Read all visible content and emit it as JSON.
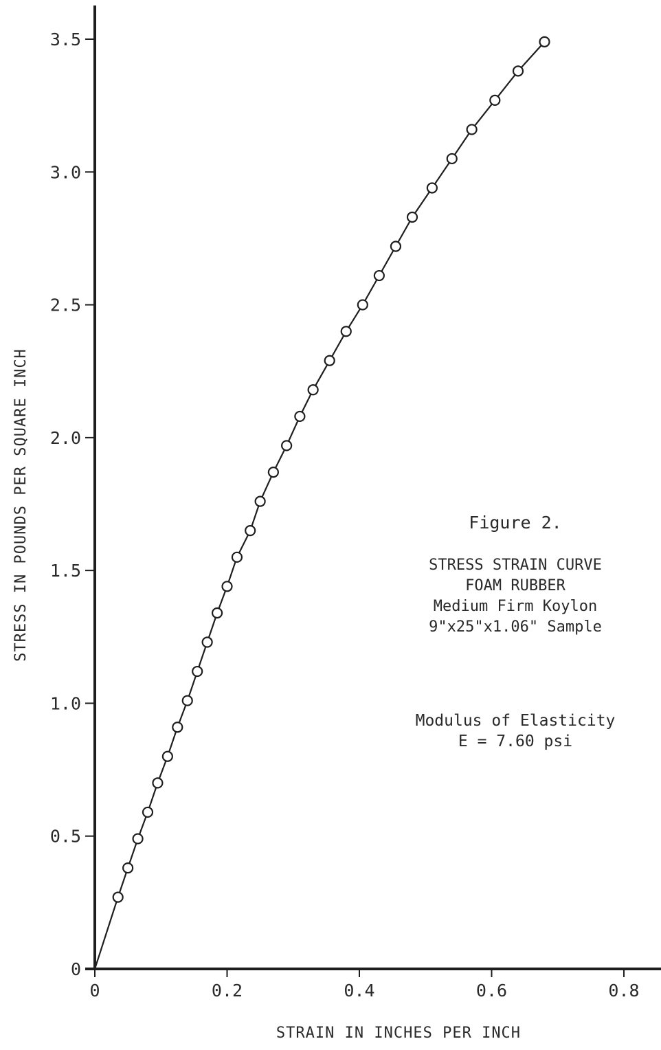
{
  "chart_data": {
    "type": "line",
    "title": "",
    "xlabel": "STRAIN IN INCHES PER INCH",
    "ylabel": "STRESS IN POUNDS PER SQUARE INCH",
    "xlim": [
      0,
      0.8
    ],
    "ylim": [
      0,
      3.5
    ],
    "x_ticks": [
      0,
      0.2,
      0.4,
      0.6,
      0.8
    ],
    "x_tick_labels": [
      "0",
      "0.2",
      "0.4",
      "0.6",
      "0.8"
    ],
    "y_ticks": [
      0,
      0.5,
      1.0,
      1.5,
      2.0,
      2.5,
      3.0,
      3.5
    ],
    "y_tick_labels": [
      "0",
      "0.5",
      "1.0",
      "1.5",
      "2.0",
      "2.5",
      "3.0",
      "3.5"
    ],
    "grid": false,
    "series": [
      {
        "marker": "open-circle",
        "line": "solid",
        "color": "#1e1e1e",
        "points": [
          [
            0.035,
            0.27
          ],
          [
            0.05,
            0.38
          ],
          [
            0.065,
            0.49
          ],
          [
            0.08,
            0.59
          ],
          [
            0.095,
            0.7
          ],
          [
            0.11,
            0.8
          ],
          [
            0.125,
            0.91
          ],
          [
            0.14,
            1.01
          ],
          [
            0.155,
            1.12
          ],
          [
            0.17,
            1.23
          ],
          [
            0.185,
            1.34
          ],
          [
            0.2,
            1.44
          ],
          [
            0.215,
            1.55
          ],
          [
            0.235,
            1.65
          ],
          [
            0.25,
            1.76
          ],
          [
            0.27,
            1.87
          ],
          [
            0.29,
            1.97
          ],
          [
            0.31,
            2.08
          ],
          [
            0.33,
            2.18
          ],
          [
            0.355,
            2.29
          ],
          [
            0.38,
            2.4
          ],
          [
            0.405,
            2.5
          ],
          [
            0.43,
            2.61
          ],
          [
            0.455,
            2.72
          ],
          [
            0.48,
            2.83
          ],
          [
            0.51,
            2.94
          ],
          [
            0.54,
            3.05
          ],
          [
            0.57,
            3.16
          ],
          [
            0.605,
            3.27
          ],
          [
            0.64,
            3.38
          ],
          [
            0.68,
            3.49
          ]
        ]
      }
    ]
  },
  "caption": {
    "figure": "Figure 2.",
    "lines": [
      "STRESS STRAIN CURVE",
      "FOAM RUBBER",
      "Medium Firm Koylon",
      "9\"x25\"x1.06\" Sample"
    ],
    "modulus_label": "Modulus of Elasticity",
    "modulus_value": "E = 7.60 psi"
  }
}
